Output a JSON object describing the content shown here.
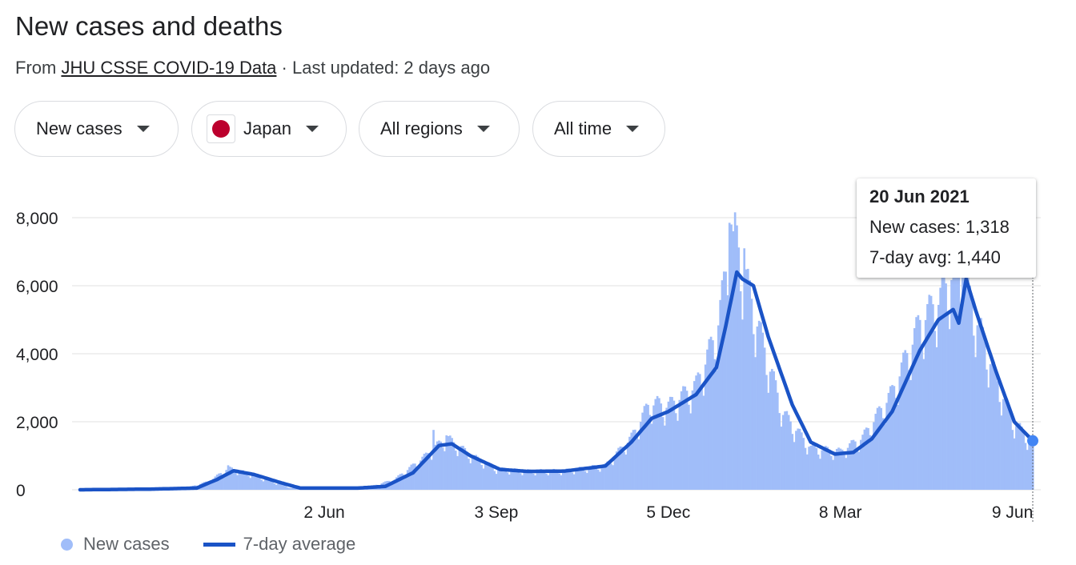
{
  "header": {
    "title": "New cases and deaths",
    "from_prefix": "From",
    "source_link": "JHU CSSE COVID-19 Data",
    "updated": "· Last updated: 2 days ago"
  },
  "filters": {
    "metric": "New cases",
    "country": "Japan",
    "region": "All regions",
    "period": "All time"
  },
  "colors": {
    "bars": "#a0bdf9",
    "average_line": "#1a53c6",
    "highlight": "#4285f4",
    "flag": "#bc002d",
    "gridline": "#e0e0e0"
  },
  "tooltip": {
    "date": "20 Jun 2021",
    "new_cases_label": "New cases: 1,318",
    "avg_label": "7-day avg: 1,440"
  },
  "legend": {
    "new_cases": "New cases",
    "avg": "7-day average"
  },
  "chart_data": {
    "type": "bar",
    "overlay": "line",
    "xlabel": "",
    "ylabel": "",
    "ylim": [
      0,
      8000
    ],
    "y_ticks": [
      0,
      2000,
      4000,
      6000,
      8000
    ],
    "y_tick_labels": [
      "0",
      "2,000",
      "4,000",
      "6,000",
      "8,000"
    ],
    "x_tick_labels": [
      "2 Jun",
      "3 Sep",
      "5 Dec",
      "8 Mar",
      "9 Jun"
    ],
    "x_tick_dates": [
      "2020-06-02",
      "2020-09-03",
      "2020-12-05",
      "2021-03-08",
      "2021-06-09"
    ],
    "date_range": [
      "2020-01-22",
      "2021-06-20"
    ],
    "grid": true,
    "legend_position": "bottom-left",
    "series": [
      {
        "name": "New cases",
        "kind": "bar",
        "anchors": [
          [
            "2020-01-22",
            0
          ],
          [
            "2020-03-01",
            30
          ],
          [
            "2020-03-20",
            60
          ],
          [
            "2020-04-01",
            250
          ],
          [
            "2020-04-11",
            620
          ],
          [
            "2020-04-20",
            500
          ],
          [
            "2020-05-01",
            300
          ],
          [
            "2020-05-15",
            50
          ],
          [
            "2020-06-02",
            35
          ],
          [
            "2020-06-25",
            60
          ],
          [
            "2020-07-10",
            300
          ],
          [
            "2020-07-25",
            900
          ],
          [
            "2020-08-07",
            1500
          ],
          [
            "2020-08-20",
            1000
          ],
          [
            "2020-09-03",
            600
          ],
          [
            "2020-09-20",
            540
          ],
          [
            "2020-10-10",
            550
          ],
          [
            "2020-11-01",
            700
          ],
          [
            "2020-11-15",
            1500
          ],
          [
            "2020-11-25",
            2500
          ],
          [
            "2020-12-05",
            2400
          ],
          [
            "2020-12-20",
            3000
          ],
          [
            "2020-12-31",
            4500
          ],
          [
            "2021-01-09",
            7500
          ],
          [
            "2021-01-15",
            6200
          ],
          [
            "2021-01-25",
            4200
          ],
          [
            "2021-02-05",
            2200
          ],
          [
            "2021-02-20",
            1200
          ],
          [
            "2021-03-08",
            1100
          ],
          [
            "2021-03-20",
            1500
          ],
          [
            "2021-04-05",
            2800
          ],
          [
            "2021-04-20",
            4800
          ],
          [
            "2021-05-01",
            5500
          ],
          [
            "2021-05-10",
            6500
          ],
          [
            "2021-05-20",
            5000
          ],
          [
            "2021-05-31",
            3200
          ],
          [
            "2021-06-09",
            2000
          ],
          [
            "2021-06-20",
            1318
          ]
        ],
        "peaks": [
          [
            "2020-04-11",
            720
          ],
          [
            "2020-07-31",
            1760
          ],
          [
            "2020-08-07",
            1600
          ],
          [
            "2021-01-07",
            7850
          ],
          [
            "2021-01-08",
            7800
          ],
          [
            "2021-01-09",
            7600
          ],
          [
            "2021-01-15",
            7100
          ],
          [
            "2021-05-08",
            6600
          ],
          [
            "2021-05-13",
            7000
          ],
          [
            "2021-05-14",
            6850
          ],
          [
            "2021-05-15",
            6400
          ]
        ]
      },
      {
        "name": "7-day average",
        "kind": "line",
        "anchors": [
          [
            "2020-01-22",
            0
          ],
          [
            "2020-03-01",
            20
          ],
          [
            "2020-03-25",
            50
          ],
          [
            "2020-04-05",
            300
          ],
          [
            "2020-04-14",
            560
          ],
          [
            "2020-04-25",
            450
          ],
          [
            "2020-05-10",
            200
          ],
          [
            "2020-05-20",
            50
          ],
          [
            "2020-06-20",
            50
          ],
          [
            "2020-07-05",
            100
          ],
          [
            "2020-07-20",
            500
          ],
          [
            "2020-08-03",
            1300
          ],
          [
            "2020-08-10",
            1350
          ],
          [
            "2020-08-20",
            1000
          ],
          [
            "2020-09-05",
            600
          ],
          [
            "2020-09-20",
            540
          ],
          [
            "2020-10-10",
            550
          ],
          [
            "2020-11-01",
            700
          ],
          [
            "2020-11-15",
            1400
          ],
          [
            "2020-11-26",
            2100
          ],
          [
            "2020-12-05",
            2300
          ],
          [
            "2020-12-20",
            2800
          ],
          [
            "2020-12-31",
            3600
          ],
          [
            "2021-01-05",
            4800
          ],
          [
            "2021-01-11",
            6400
          ],
          [
            "2021-01-14",
            6200
          ],
          [
            "2021-01-20",
            6000
          ],
          [
            "2021-01-28",
            4500
          ],
          [
            "2021-02-10",
            2500
          ],
          [
            "2021-02-20",
            1400
          ],
          [
            "2021-03-05",
            1050
          ],
          [
            "2021-03-15",
            1100
          ],
          [
            "2021-03-25",
            1500
          ],
          [
            "2021-04-05",
            2300
          ],
          [
            "2021-04-20",
            4100
          ],
          [
            "2021-04-30",
            5000
          ],
          [
            "2021-05-08",
            5300
          ],
          [
            "2021-05-11",
            4900
          ],
          [
            "2021-05-15",
            6200
          ],
          [
            "2021-05-20",
            5300
          ],
          [
            "2021-05-31",
            3500
          ],
          [
            "2021-06-10",
            2000
          ],
          [
            "2021-06-20",
            1440
          ]
        ]
      }
    ],
    "highlight": {
      "date": "2021-06-20",
      "new_cases": 1318,
      "avg": 1440
    }
  }
}
